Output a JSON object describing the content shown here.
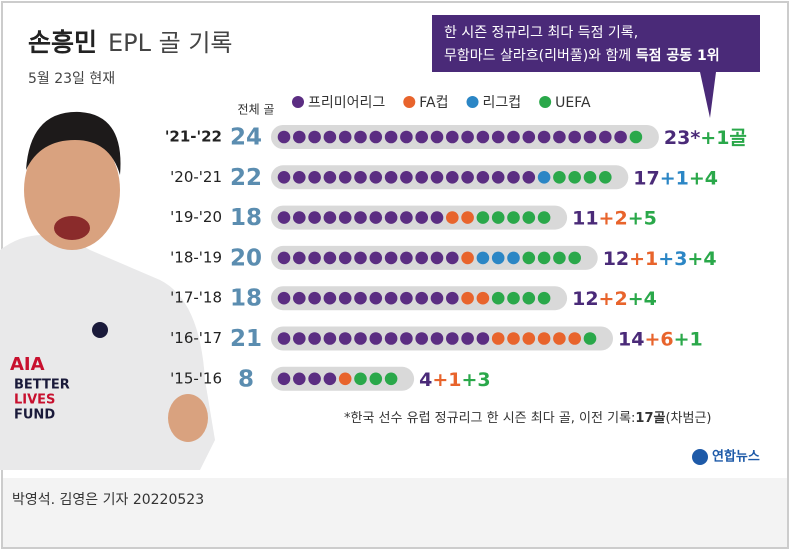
{
  "chart_data": {
    "type": "dot",
    "title": "손흥민",
    "title_rest": "EPL 골 기록",
    "subtitle": "5월 23일 현재",
    "callout": {
      "line1": "한 시즌 정규리그 최다 득점 기록,",
      "line2": "무함마드 살라흐(리버풀)와 함께 ",
      "line2_bold": "득점 공동 1위"
    },
    "totals_label": "전체 골",
    "categories": [
      "'21-'22",
      "'20-'21",
      "'19-'20",
      "'18-'19",
      "'17-'18",
      "'16-'17",
      "'15-'16"
    ],
    "totals": [
      24,
      22,
      18,
      20,
      18,
      21,
      8
    ],
    "series": [
      {
        "name": "프리미어리그",
        "color": "#5b2d82",
        "label_color": "#4a2a78",
        "values": [
          23,
          17,
          11,
          12,
          12,
          14,
          4
        ],
        "value_labels": [
          "23*",
          "17",
          "11",
          "12",
          "12",
          "14",
          "4"
        ]
      },
      {
        "name": "FA컵",
        "color": "#e8642c",
        "label_color": "#e8642c",
        "values": [
          0,
          0,
          2,
          1,
          2,
          6,
          1
        ],
        "value_labels": [
          null,
          null,
          "+2",
          "+1",
          "+2",
          "+6",
          "+1"
        ]
      },
      {
        "name": "리그컵",
        "color": "#2b86c5",
        "label_color": "#2b86c5",
        "values": [
          0,
          1,
          0,
          3,
          0,
          0,
          0
        ],
        "value_labels": [
          null,
          "+1",
          null,
          "+3",
          null,
          null,
          null
        ]
      },
      {
        "name": "UEFA",
        "color": "#2aa84a",
        "label_color": "#2aa84a",
        "values": [
          1,
          4,
          5,
          4,
          4,
          1,
          3
        ],
        "value_labels": [
          "+1골",
          "+4",
          "+5",
          "+4",
          "+4",
          "+1",
          "+3"
        ]
      }
    ],
    "footnote": "*한국 선수 유럽 정규리그 한 시즌 최다 골, 이전 기록:",
    "footnote_bold": "17골",
    "footnote_end": "(차범근)",
    "logo": "연합뉴스",
    "credit": "박영석. 김영은 기자  20220523"
  }
}
